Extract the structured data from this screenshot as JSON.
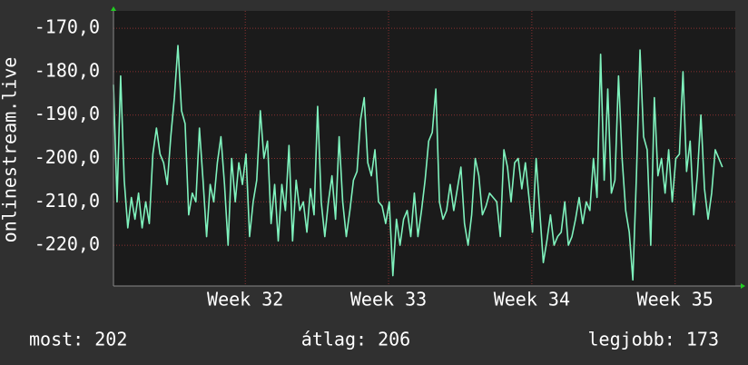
{
  "chart_data": {
    "type": "line",
    "y_label": "onlinestream.live",
    "color": "#7ff2bd",
    "grid": true,
    "xlim": [
      31.08,
      35.42
    ],
    "xticks": [
      {
        "value": 32,
        "label": "Week 32"
      },
      {
        "value": 33,
        "label": "Week 33"
      },
      {
        "value": 34,
        "label": "Week 34"
      },
      {
        "value": 35,
        "label": "Week 35"
      }
    ],
    "ylim": [
      -229.4,
      -166
    ],
    "yticks": [
      {
        "value": -170,
        "label": "-170,0"
      },
      {
        "value": -180,
        "label": "-180,0"
      },
      {
        "value": -190,
        "label": "-190,0"
      },
      {
        "value": -200,
        "label": "-200,0"
      },
      {
        "value": -210,
        "label": "-210,0"
      },
      {
        "value": -220,
        "label": "-220,0"
      }
    ],
    "x": [
      31.08,
      31.105,
      31.13,
      31.155,
      31.18,
      31.205,
      31.23,
      31.255,
      31.28,
      31.305,
      31.33,
      31.355,
      31.38,
      31.405,
      31.43,
      31.455,
      31.48,
      31.505,
      31.53,
      31.555,
      31.58,
      31.605,
      31.63,
      31.655,
      31.68,
      31.705,
      31.73,
      31.755,
      31.78,
      31.805,
      31.83,
      31.855,
      31.88,
      31.905,
      31.93,
      31.955,
      31.98,
      32.005,
      32.03,
      32.055,
      32.08,
      32.105,
      32.13,
      32.155,
      32.18,
      32.205,
      32.23,
      32.255,
      32.28,
      32.305,
      32.33,
      32.355,
      32.38,
      32.405,
      32.43,
      32.455,
      32.48,
      32.505,
      32.53,
      32.555,
      32.58,
      32.605,
      32.63,
      32.655,
      32.68,
      32.705,
      32.73,
      32.755,
      32.78,
      32.805,
      32.83,
      32.855,
      32.88,
      32.905,
      32.93,
      32.955,
      32.98,
      33.005,
      33.03,
      33.055,
      33.08,
      33.105,
      33.13,
      33.155,
      33.18,
      33.205,
      33.23,
      33.255,
      33.28,
      33.305,
      33.33,
      33.355,
      33.38,
      33.405,
      33.43,
      33.455,
      33.48,
      33.505,
      33.53,
      33.555,
      33.58,
      33.605,
      33.63,
      33.655,
      33.68,
      33.705,
      33.73,
      33.755,
      33.78,
      33.805,
      33.83,
      33.855,
      33.88,
      33.905,
      33.93,
      33.955,
      33.98,
      34.005,
      34.03,
      34.055,
      34.08,
      34.105,
      34.13,
      34.155,
      34.18,
      34.205,
      34.23,
      34.255,
      34.28,
      34.305,
      34.33,
      34.355,
      34.38,
      34.405,
      34.43,
      34.455,
      34.48,
      34.505,
      34.53,
      34.555,
      34.58,
      34.605,
      34.63,
      34.655,
      34.68,
      34.705,
      34.73,
      34.755,
      34.78,
      34.805,
      34.83,
      34.855,
      34.88,
      34.905,
      34.93,
      34.955,
      34.98,
      35.005,
      35.03,
      35.055,
      35.08,
      35.105,
      35.13,
      35.155,
      35.18,
      35.205,
      35.23,
      35.255,
      35.28,
      35.305,
      35.33
    ],
    "values": [
      -183,
      -210,
      -181,
      -205,
      -216,
      -209,
      -214,
      -208,
      -216,
      -210,
      -215,
      -199,
      -193,
      -199,
      -201,
      -206,
      -195,
      -186,
      -174,
      -189,
      -192,
      -213,
      -208,
      -210,
      -193,
      -205,
      -218,
      -206,
      -210,
      -201,
      -195,
      -206,
      -220,
      -200,
      -210,
      -201,
      -206,
      -199,
      -218,
      -210,
      -205,
      -189,
      -200,
      -196,
      -215,
      -206,
      -219,
      -206,
      -212,
      -197,
      -219,
      -205,
      -212,
      -210,
      -217,
      -207,
      -213,
      -188,
      -210,
      -218,
      -210,
      -204,
      -214,
      -195,
      -210,
      -218,
      -212,
      -205,
      -203,
      -191,
      -186,
      -201,
      -204,
      -198,
      -210,
      -211,
      -215,
      -210,
      -227,
      -214,
      -220,
      -214,
      -212,
      -218,
      -208,
      -218,
      -212,
      -205,
      -196,
      -194,
      -184,
      -210,
      -214,
      -212,
      -206,
      -212,
      -207,
      -202,
      -215,
      -220,
      -213,
      -200,
      -204,
      -213,
      -211,
      -208,
      -209,
      -210,
      -218,
      -198,
      -202,
      -210,
      -201,
      -200,
      -207,
      -201,
      -209,
      -217,
      -200,
      -212,
      -224,
      -219,
      -213,
      -220,
      -218,
      -217,
      -210,
      -220,
      -218,
      -214,
      -209,
      -215,
      -210,
      -212,
      -200,
      -209,
      -176,
      -205,
      -184,
      -208,
      -205,
      -181,
      -200,
      -212,
      -217,
      -228,
      -204,
      -175,
      -195,
      -198,
      -220,
      -186,
      -204,
      -200,
      -208,
      -198,
      -210,
      -200,
      -199,
      -180,
      -203,
      -196,
      -213,
      -204,
      -190,
      -207,
      -214,
      -208,
      -198,
      -200,
      -202
    ],
    "footer": {
      "current": "most: 202",
      "average": "átlag: 206",
      "best": "legjobb: 173"
    }
  }
}
